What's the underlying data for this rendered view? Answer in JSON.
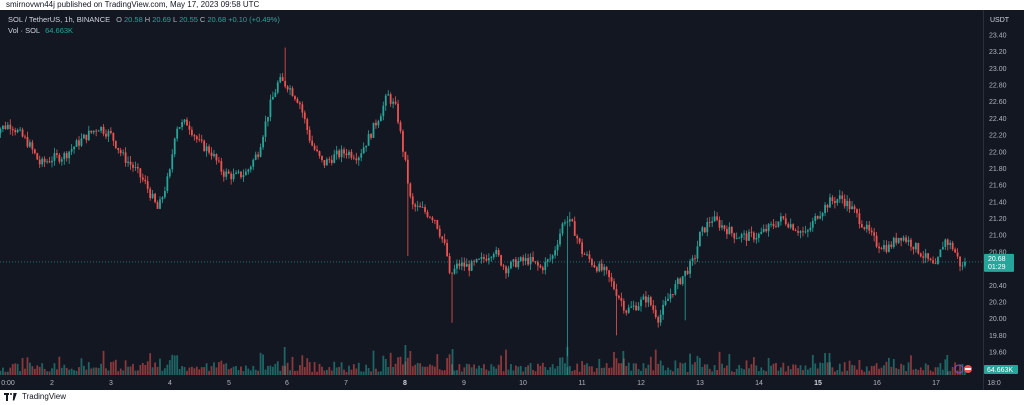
{
  "header": {
    "published": "smirnovwn44j published on TradingView.com, May 17, 2023 09:58 UTC"
  },
  "legend": {
    "symbol": "SOL / TetherUS, 1h, BINANCE",
    "o_label": "O",
    "o": "20.58",
    "h_label": "H",
    "h": "20.69",
    "l_label": "L",
    "l": "20.55",
    "c_label": "C",
    "c": "20.68",
    "change": "+0.10 (+0.49%)",
    "vol_label": "Vol · SOL",
    "vol": "64.663K"
  },
  "footer": {
    "brand": "TradingView"
  },
  "colors": {
    "up": "#26a69a",
    "down": "#ef5350",
    "background": "#131722",
    "grid": "#1e222d",
    "text": "#b2b5be"
  },
  "chart_data": {
    "type": "candlestick",
    "yunit": "USDT",
    "ylim": [
      19.5,
      23.5
    ],
    "y_ticks": [
      "23.40",
      "23.20",
      "23.00",
      "22.80",
      "22.60",
      "22.40",
      "22.20",
      "22.00",
      "21.80",
      "21.60",
      "21.40",
      "21.20",
      "21.00",
      "20.80",
      "20.60",
      "20.40",
      "20.20",
      "20.00",
      "19.80",
      "19.60"
    ],
    "x_ticks": [
      "0:00",
      "2",
      "3",
      "4",
      "5",
      "6",
      "7",
      "8",
      "9",
      "10",
      "11",
      "12",
      "13",
      "14",
      "15",
      "16",
      "17",
      "18:0"
    ],
    "x_ticks_bold": [
      "8",
      "15"
    ],
    "last_price": 20.68,
    "last_price_label": "20.68",
    "countdown": "01:29",
    "volume_label": "64.663K",
    "volume_unit": "SOL",
    "grid": false,
    "anchors": [
      [
        1.0,
        22.25
      ],
      [
        1.3,
        22.33
      ],
      [
        1.6,
        22.1
      ],
      [
        1.8,
        21.85
      ],
      [
        2.0,
        21.92
      ],
      [
        2.2,
        21.95
      ],
      [
        2.4,
        22.08
      ],
      [
        2.6,
        22.2
      ],
      [
        2.8,
        22.3
      ],
      [
        3.0,
        22.2
      ],
      [
        3.2,
        21.95
      ],
      [
        3.4,
        21.8
      ],
      [
        3.6,
        21.6
      ],
      [
        3.8,
        21.3
      ],
      [
        4.0,
        21.75
      ],
      [
        4.1,
        22.3
      ],
      [
        4.3,
        22.35
      ],
      [
        4.5,
        22.1
      ],
      [
        4.7,
        22.0
      ],
      [
        4.9,
        21.75
      ],
      [
        5.1,
        21.7
      ],
      [
        5.3,
        21.75
      ],
      [
        5.5,
        22.0
      ],
      [
        5.7,
        22.55
      ],
      [
        5.85,
        22.85
      ],
      [
        6.0,
        22.8
      ],
      [
        6.2,
        22.6
      ],
      [
        6.4,
        22.1
      ],
      [
        6.6,
        21.85
      ],
      [
        6.8,
        21.95
      ],
      [
        7.0,
        22.0
      ],
      [
        7.2,
        21.95
      ],
      [
        7.4,
        22.2
      ],
      [
        7.6,
        22.5
      ],
      [
        7.7,
        22.68
      ],
      [
        7.85,
        22.5
      ],
      [
        8.0,
        21.85
      ],
      [
        8.1,
        21.35
      ],
      [
        8.3,
        21.3
      ],
      [
        8.5,
        21.2
      ],
      [
        8.7,
        20.8
      ],
      [
        8.75,
        20.5
      ],
      [
        8.9,
        20.65
      ],
      [
        9.1,
        20.62
      ],
      [
        9.3,
        20.7
      ],
      [
        9.5,
        20.82
      ],
      [
        9.7,
        20.6
      ],
      [
        9.9,
        20.68
      ],
      [
        10.1,
        20.7
      ],
      [
        10.3,
        20.6
      ],
      [
        10.5,
        20.75
      ],
      [
        10.7,
        21.2
      ],
      [
        10.85,
        21.1
      ],
      [
        11.0,
        20.8
      ],
      [
        11.2,
        20.65
      ],
      [
        11.4,
        20.55
      ],
      [
        11.6,
        20.3
      ],
      [
        11.75,
        20.1
      ],
      [
        11.9,
        20.15
      ],
      [
        12.1,
        20.25
      ],
      [
        12.3,
        20.0
      ],
      [
        12.5,
        20.3
      ],
      [
        12.7,
        20.5
      ],
      [
        12.9,
        20.7
      ],
      [
        13.0,
        21.0
      ],
      [
        13.2,
        21.2
      ],
      [
        13.4,
        21.1
      ],
      [
        13.6,
        21.0
      ],
      [
        13.8,
        20.98
      ],
      [
        14.0,
        21.0
      ],
      [
        14.2,
        21.1
      ],
      [
        14.4,
        21.2
      ],
      [
        14.6,
        21.1
      ],
      [
        14.8,
        21.0
      ],
      [
        15.0,
        21.25
      ],
      [
        15.2,
        21.4
      ],
      [
        15.4,
        21.45
      ],
      [
        15.6,
        21.3
      ],
      [
        15.8,
        21.1
      ],
      [
        16.0,
        20.9
      ],
      [
        16.2,
        20.85
      ],
      [
        16.4,
        21.0
      ],
      [
        16.6,
        20.9
      ],
      [
        16.8,
        20.75
      ],
      [
        17.0,
        20.6
      ],
      [
        17.15,
        20.95
      ],
      [
        17.3,
        20.85
      ],
      [
        17.45,
        20.6
      ],
      [
        17.5,
        20.68
      ]
    ],
    "spikes": [
      [
        5.95,
        23.25,
        "high"
      ],
      [
        8.05,
        20.75,
        "low"
      ],
      [
        8.8,
        19.95,
        "low"
      ],
      [
        10.75,
        19.55,
        "low"
      ],
      [
        10.8,
        21.28,
        "high"
      ],
      [
        11.6,
        19.8,
        "low"
      ],
      [
        12.75,
        19.98,
        "low"
      ],
      [
        15.5,
        21.48,
        "high"
      ]
    ]
  }
}
